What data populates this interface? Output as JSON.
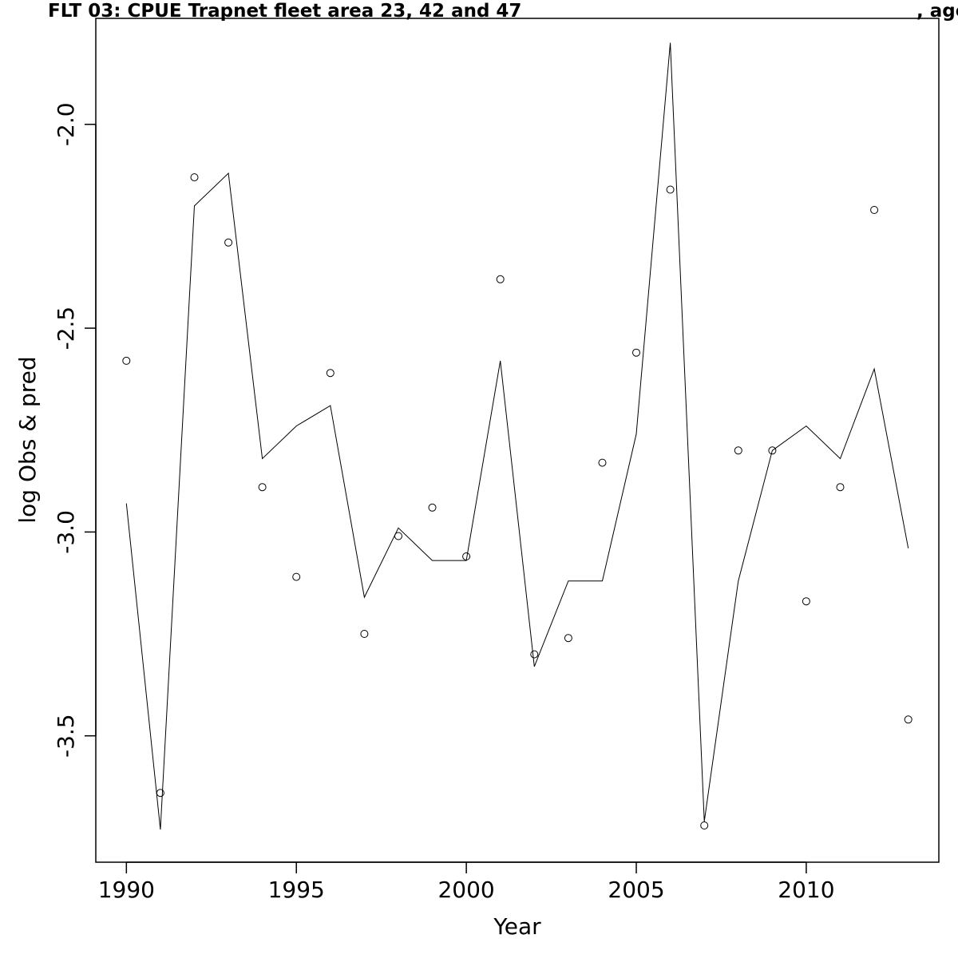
{
  "chart_data": {
    "type": "line",
    "title": "FLT 03: CPUE Trapnet fleet area 23, 42 and 47",
    "title_right": ", age",
    "xlabel": "Year",
    "ylabel": "log Obs & pred",
    "xlim": [
      1989.1,
      2013.9
    ],
    "ylim": [
      -3.81,
      -1.74
    ],
    "x_ticks": [
      1990,
      1995,
      2000,
      2005,
      2010
    ],
    "y_ticks": [
      -3.5,
      -3.0,
      -2.5,
      -2.0
    ],
    "y_tick_labels": [
      "-3.5",
      "-3.0",
      "-2.5",
      "-2.0"
    ],
    "grid": false,
    "x": [
      1990,
      1991,
      1992,
      1993,
      1994,
      1995,
      1996,
      1997,
      1998,
      1999,
      2000,
      2001,
      2002,
      2003,
      2004,
      2005,
      2006,
      2007,
      2008,
      2009,
      2010,
      2011,
      2012,
      2013
    ],
    "series": [
      {
        "style": "points",
        "values": [
          -2.58,
          -3.64,
          -2.13,
          -2.29,
          -2.89,
          -3.11,
          -2.61,
          -3.25,
          -3.01,
          -2.94,
          -3.06,
          -2.38,
          -3.3,
          -3.26,
          -2.83,
          -2.56,
          -2.16,
          -3.72,
          -2.8,
          -2.8,
          -3.17,
          -2.89,
          -2.21,
          -3.46
        ]
      },
      {
        "style": "line",
        "values": [
          -2.93,
          -3.73,
          -2.2,
          -2.12,
          -2.82,
          -2.74,
          -2.69,
          -3.16,
          -2.99,
          -3.07,
          -3.07,
          -2.58,
          -3.33,
          -3.12,
          -3.12,
          -2.76,
          -1.8,
          -3.71,
          -3.12,
          -2.8,
          -2.74,
          -2.82,
          -2.6,
          -3.04
        ]
      }
    ]
  }
}
